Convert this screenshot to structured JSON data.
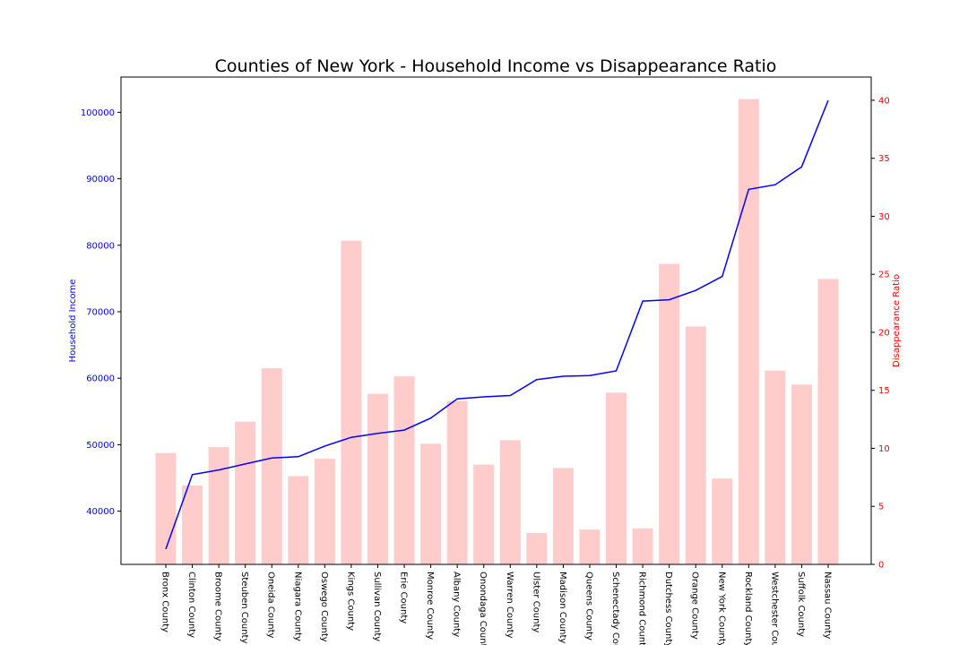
{
  "chart_data": {
    "type": "bar+line",
    "title": "Counties of New York - Household Income vs Disappearance Ratio",
    "categories": [
      "Bronx County",
      "Clinton County",
      "Broome County",
      "Steuben County",
      "Oneida County",
      "Niagara County",
      "Oswego County",
      "Kings County",
      "Sullivan County",
      "Erie County",
      "Monroe County",
      "Albany County",
      "Onondaga County",
      "Warren County",
      "Ulster County",
      "Madison County",
      "Queens County",
      "Schenectady County",
      "Richmond County",
      "Dutchess County",
      "Orange County",
      "New York County",
      "Rockland County",
      "Westchester County",
      "Suffolk County",
      "Nassau County"
    ],
    "series": [
      {
        "name": "Household Income",
        "kind": "line",
        "axis": "left",
        "color": "#0000ff",
        "values": [
          34300,
          45500,
          46200,
          47100,
          48000,
          48200,
          49800,
          51100,
          51700,
          52200,
          54000,
          56900,
          57200,
          57400,
          59800,
          60300,
          60400,
          61100,
          71600,
          71800,
          73200,
          75300,
          88400,
          89100,
          91800,
          101800
        ]
      },
      {
        "name": "Disappearance Ratio",
        "kind": "bar",
        "axis": "right",
        "color": "#ffcccc",
        "values": [
          9.6,
          6.8,
          10.1,
          12.3,
          16.9,
          7.6,
          9.1,
          27.9,
          14.7,
          16.2,
          10.4,
          14.1,
          8.6,
          10.7,
          2.7,
          8.3,
          3.0,
          14.8,
          3.1,
          25.9,
          20.5,
          7.4,
          40.1,
          16.7,
          15.5,
          24.6
        ]
      }
    ],
    "ylabel": "Household Income",
    "ylabel_right": "Disappearance Ratio",
    "ylim": [
      32000,
      105300
    ],
    "ylim_right": [
      0,
      42
    ],
    "yticks": [
      40000,
      50000,
      60000,
      70000,
      80000,
      90000,
      100000
    ],
    "yticks_right": [
      0,
      5,
      10,
      15,
      20,
      25,
      30,
      35,
      40
    ],
    "grid": false,
    "legend": "none"
  }
}
